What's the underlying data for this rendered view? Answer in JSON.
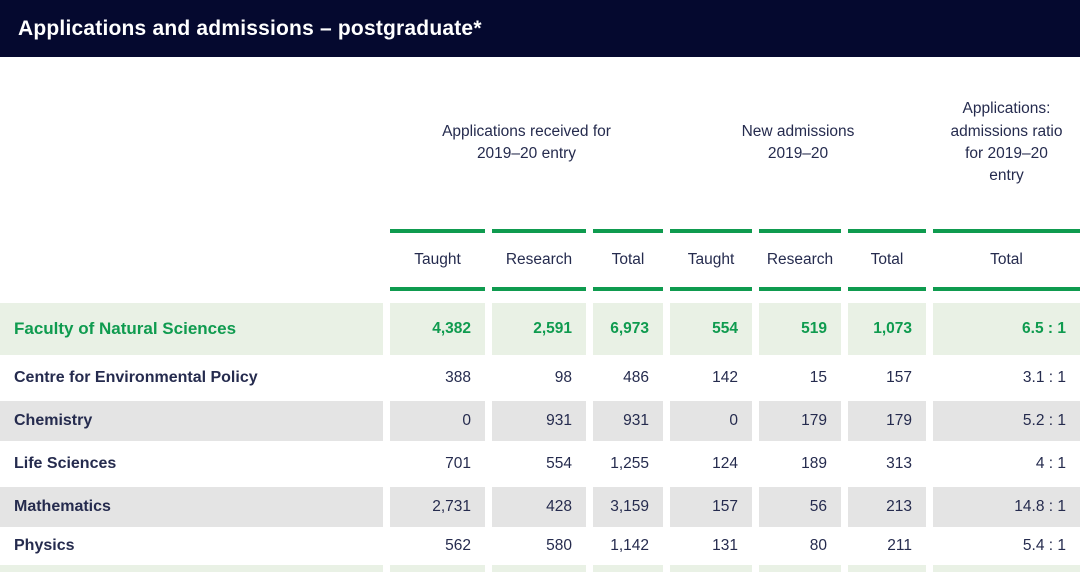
{
  "header": {
    "title": "Applications and admissions – postgraduate*"
  },
  "table": {
    "groups": [
      {
        "label": "Applications received for  2019–20 entry"
      },
      {
        "label": "New admissions 2019–20"
      },
      {
        "label": "Applications: admissions ratio for 2019–20 entry"
      }
    ],
    "subheaders": [
      "Taught",
      "Research",
      "Total",
      "Taught",
      "Research",
      "Total",
      "Total"
    ],
    "rows": [
      {
        "label": "Faculty of Natural Sciences",
        "values": [
          "4,382",
          "2,591",
          "6,973",
          "554",
          "519",
          "1,073",
          "6.5 : 1"
        ]
      },
      {
        "label": "Centre for Environmental Policy",
        "values": [
          "388",
          "98",
          "486",
          "142",
          "15",
          "157",
          "3.1 : 1"
        ]
      },
      {
        "label": "Chemistry",
        "values": [
          "0",
          "931",
          "931",
          "0",
          "179",
          "179",
          "5.2 : 1"
        ]
      },
      {
        "label": "Life Sciences",
        "values": [
          "701",
          "554",
          "1,255",
          "124",
          "189",
          "313",
          "4 : 1"
        ]
      },
      {
        "label": "Mathematics",
        "values": [
          "2,731",
          "428",
          "3,159",
          "157",
          "56",
          "213",
          "14.8 : 1"
        ]
      },
      {
        "label": "Physics",
        "values": [
          "562",
          "580",
          "1,142",
          "131",
          "80",
          "211",
          "5.4 : 1"
        ]
      }
    ]
  },
  "colors": {
    "titlebar_bg": "#05092f",
    "accent_green": "#0f9b4f",
    "highlight_row_bg": "#e9f1e5",
    "shaded_row_bg": "#e4e4e4",
    "body_text": "#252b4e",
    "title_text": "#ffffff"
  }
}
